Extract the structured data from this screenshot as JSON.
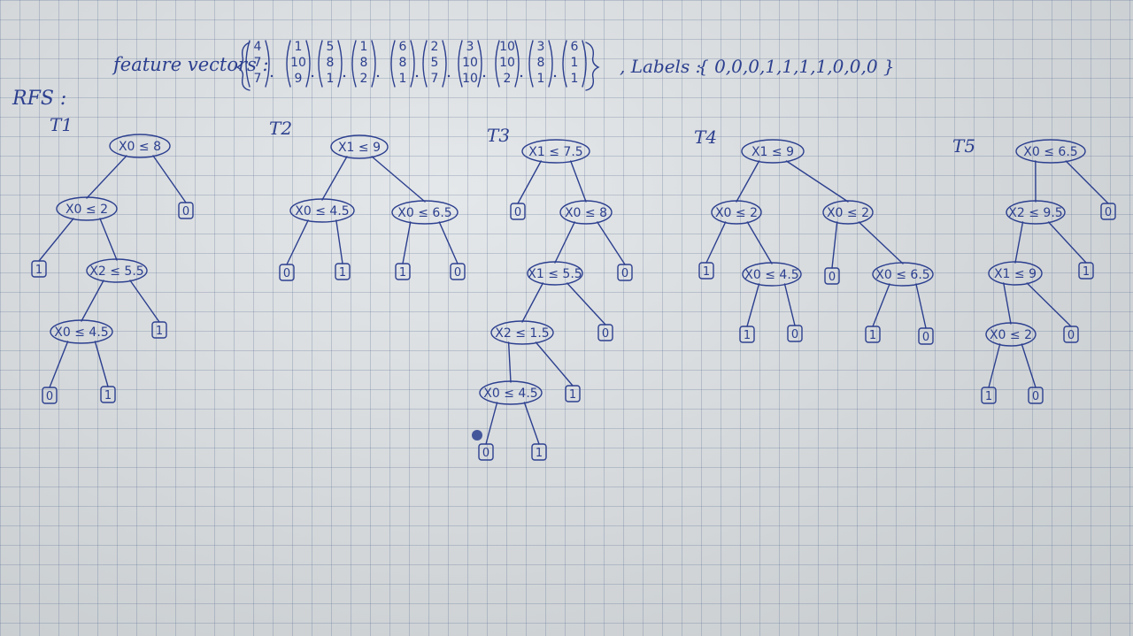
{
  "header": {
    "feature_label": "feature vectors :",
    "vectors": [
      [
        "4",
        "7",
        "7"
      ],
      [
        "1",
        "10",
        "9"
      ],
      [
        "5",
        "8",
        "1"
      ],
      [
        "1",
        "8",
        "2"
      ],
      [
        "6",
        "8",
        "1"
      ],
      [
        "2",
        "5",
        "7"
      ],
      [
        "3",
        "10",
        "10"
      ],
      [
        "10",
        "10",
        "2"
      ],
      [
        "3",
        "8",
        "1"
      ],
      [
        "6",
        "1",
        "1"
      ]
    ],
    "labels_label": ", Labels :",
    "labels_text": "{ 0,0,0,1,1,1,1,0,0,0 }"
  },
  "rfs_title": "RFS :",
  "trees": [
    {
      "name": "T1",
      "nodes": [
        {
          "id": "a",
          "t": "X0 ≤ 8"
        },
        {
          "id": "b",
          "t": "X0 ≤ 2"
        },
        {
          "id": "c",
          "t": "X2 ≤ 5.5"
        },
        {
          "id": "d",
          "t": "X0 ≤ 4.5"
        }
      ],
      "leaves": [
        {
          "id": "l1",
          "v": "0"
        },
        {
          "id": "l2",
          "v": "1"
        },
        {
          "id": "l3",
          "v": "1"
        },
        {
          "id": "l4",
          "v": "0"
        },
        {
          "id": "l5",
          "v": "1"
        }
      ]
    },
    {
      "name": "T2",
      "nodes": [
        {
          "id": "a",
          "t": "X1 ≤ 9"
        },
        {
          "id": "b",
          "t": "X0 ≤ 4.5"
        },
        {
          "id": "c",
          "t": "X0 ≤ 6.5"
        }
      ],
      "leaves": [
        {
          "id": "l1",
          "v": "0"
        },
        {
          "id": "l2",
          "v": "1"
        },
        {
          "id": "l3",
          "v": "1"
        },
        {
          "id": "l4",
          "v": "0"
        }
      ]
    },
    {
      "name": "T3",
      "nodes": [
        {
          "id": "a",
          "t": "X1 ≤ 7.5"
        },
        {
          "id": "b",
          "t": "X0 ≤ 8"
        },
        {
          "id": "c",
          "t": "X1 ≤ 5.5"
        },
        {
          "id": "d",
          "t": "X2 ≤ 1.5"
        },
        {
          "id": "e",
          "t": "X0 ≤ 4.5"
        }
      ],
      "leaves": [
        {
          "id": "l1",
          "v": "0"
        },
        {
          "id": "l2",
          "v": "0"
        },
        {
          "id": "l3",
          "v": "0"
        },
        {
          "id": "l4",
          "v": "1"
        },
        {
          "id": "l5",
          "v": "0"
        },
        {
          "id": "l6",
          "v": "1"
        }
      ]
    },
    {
      "name": "T4",
      "nodes": [
        {
          "id": "a",
          "t": "X1 ≤ 9"
        },
        {
          "id": "b",
          "t": "X0 ≤ 2"
        },
        {
          "id": "c",
          "t": "X0 ≤ 2"
        },
        {
          "id": "d",
          "t": "X0 ≤ 4.5"
        },
        {
          "id": "e",
          "t": "X0 ≤ 6.5"
        }
      ],
      "leaves": [
        {
          "id": "l1",
          "v": "1"
        },
        {
          "id": "l2",
          "v": "0"
        },
        {
          "id": "l3",
          "v": "1"
        },
        {
          "id": "l4",
          "v": "0"
        },
        {
          "id": "l5",
          "v": "1"
        },
        {
          "id": "l6",
          "v": "0"
        }
      ]
    },
    {
      "name": "T5",
      "nodes": [
        {
          "id": "a",
          "t": "X0 ≤ 6.5"
        },
        {
          "id": "b",
          "t": "X2 ≤ 9.5"
        },
        {
          "id": "c",
          "t": "X1 ≤ 9"
        },
        {
          "id": "d",
          "t": "X0 ≤ 2"
        }
      ],
      "leaves": [
        {
          "id": "l1",
          "v": "0"
        },
        {
          "id": "l2",
          "v": "1"
        },
        {
          "id": "l3",
          "v": "0"
        },
        {
          "id": "l4",
          "v": "1"
        },
        {
          "id": "l5",
          "v": "0"
        }
      ]
    }
  ]
}
